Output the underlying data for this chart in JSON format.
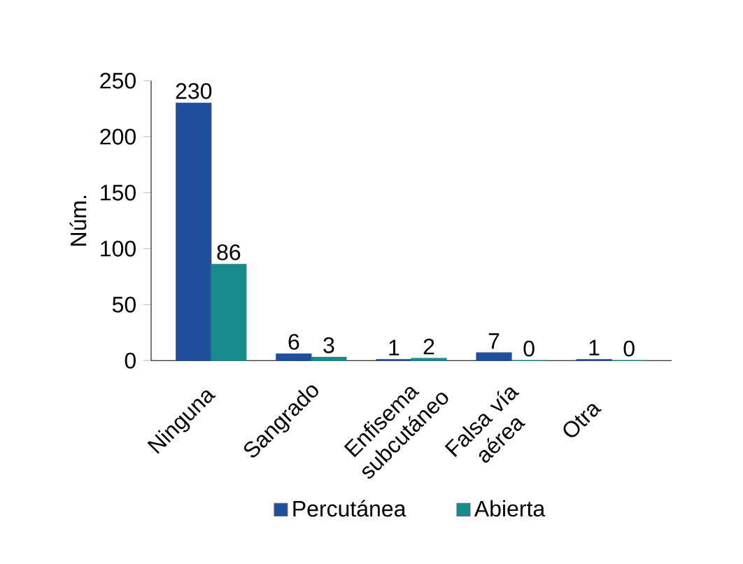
{
  "chart_data": {
    "type": "bar",
    "ylabel": "Núm.",
    "categories": [
      "Ninguna",
      "Sangrado",
      "Enfisema subcutáneo",
      "Falsa vía aérea",
      "Otra"
    ],
    "series": [
      {
        "name": "Percutánea",
        "color": "#1f4e9c",
        "values": [
          230,
          6,
          1,
          7,
          1
        ]
      },
      {
        "name": "Abierta",
        "color": "#178a8c",
        "values": [
          86,
          3,
          2,
          0,
          0
        ]
      }
    ],
    "ylim": [
      0,
      250
    ],
    "yticks": [
      0,
      50,
      100,
      150,
      200,
      250
    ],
    "data_labels": true,
    "legend": "bottom",
    "grid": false
  }
}
